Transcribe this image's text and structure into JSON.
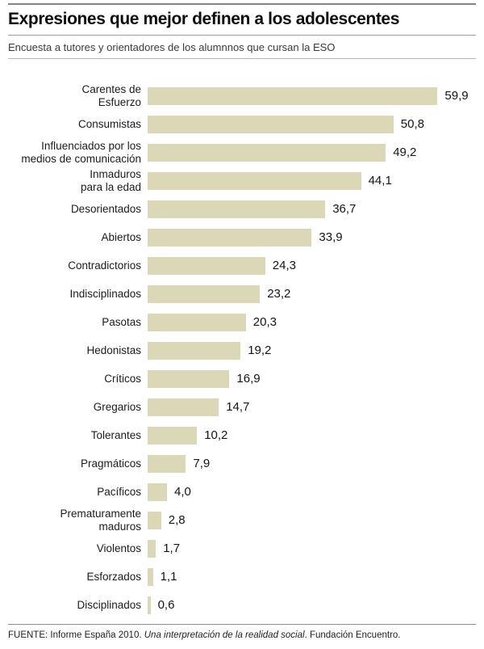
{
  "header": {
    "title": "Expresiones que mejor definen a los adolescentes",
    "subtitle": "Encuesta a tutores y orientadores de los alumnnos que cursan la ESO"
  },
  "chart_data": {
    "type": "bar",
    "orientation": "horizontal",
    "title": "Expresiones que mejor definen a los adolescentes",
    "subtitle": "Encuesta a tutores y orientadores de los alumnnos que cursan la ESO",
    "categories": [
      "Carentes de\nEsfuerzo",
      "Consumistas",
      "Influenciados por los\nmedios de comunicación",
      "Inmaduros\npara la edad",
      "Desorientados",
      "Abiertos",
      "Contradictorios",
      "Indisciplinados",
      "Pasotas",
      "Hedonistas",
      "Críticos",
      "Gregarios",
      "Tolerantes",
      "Pragmáticos",
      "Pacíficos",
      "Prematuramente\nmaduros",
      "Violentos",
      "Esforzados",
      "Disciplinados"
    ],
    "values": [
      59.9,
      50.8,
      49.2,
      44.1,
      36.7,
      33.9,
      24.3,
      23.2,
      20.3,
      19.2,
      16.9,
      14.7,
      10.2,
      7.9,
      4.0,
      2.8,
      1.7,
      1.1,
      0.6
    ],
    "value_labels": [
      "59,9",
      "50,8",
      "49,2",
      "44,1",
      "36,7",
      "33,9",
      "24,3",
      "23,2",
      "20,3",
      "19,2",
      "16,9",
      "14,7",
      "10,2",
      "7,9",
      "4,0",
      "2,8",
      "1,7",
      "1,1",
      "0,6"
    ],
    "xlim": [
      0,
      62
    ],
    "bar_color": "#dbd8b8",
    "grid": false,
    "legend": false,
    "value_labels_position": "right-of-bar"
  },
  "footer": {
    "prefix": "FUENTE: Informe España 2010. ",
    "italic": "Una interpretación de la realidad social",
    "suffix": ". Fundación Encuentro."
  }
}
